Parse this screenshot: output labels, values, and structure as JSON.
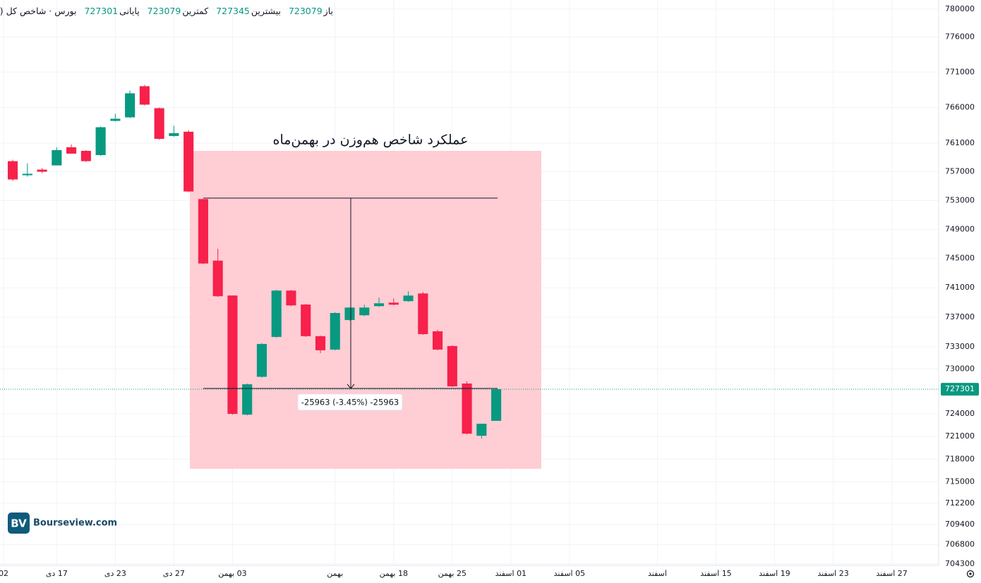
{
  "header": {
    "symbol": "بورس · شاخص کل (هم وزن)",
    "open_label": "باز",
    "high_label": "بیشترین",
    "low_label": "کمترین",
    "close_label": "پایانی"
  },
  "watermark": {
    "logo": "BV",
    "text": "Bourseview.com"
  },
  "chart_data": {
    "type": "candlestick",
    "log_scale": true,
    "grid": true,
    "up_color": "#089981",
    "down_color": "#f7214b",
    "ylim": [
      704100,
      781300
    ],
    "yticks": [
      780000,
      776000,
      771000,
      766000,
      761000,
      757000,
      753000,
      749000,
      745000,
      741000,
      737000,
      733000,
      730000,
      724000,
      721000,
      718000,
      715000,
      712200,
      709400,
      706800,
      704300
    ],
    "xlim": [
      -0.87,
      63.2
    ],
    "xticks": [
      {
        "value": -0.63,
        "label": "02"
      },
      {
        "value": 3,
        "label": "17 دی"
      },
      {
        "value": 7,
        "label": "23 دی"
      },
      {
        "value": 11,
        "label": "27 دی"
      },
      {
        "value": 15,
        "label": "03 بهمن"
      },
      {
        "value": 22,
        "label": "بهمن"
      },
      {
        "value": 26,
        "label": "18 بهمن"
      },
      {
        "value": 30,
        "label": "25 بهمن"
      },
      {
        "value": 34,
        "label": "01 اسفند"
      },
      {
        "value": 38,
        "label": "05 اسفند"
      },
      {
        "value": 44,
        "label": "اسفند"
      },
      {
        "value": 48,
        "label": "15 اسفند"
      },
      {
        "value": 52,
        "label": "19 اسفند"
      },
      {
        "value": 56,
        "label": "23 اسفند"
      },
      {
        "value": 60,
        "label": "27 اسفند"
      }
    ],
    "open": [
      758470,
      756510,
      757290,
      757880,
      760410,
      759910,
      759320,
      764110,
      764610,
      769000,
      765900,
      761990,
      762590,
      753200,
      744710,
      739950,
      723900,
      728960,
      734330,
      740620,
      738720,
      734430,
      732620,
      736620,
      737260,
      738500,
      738980,
      739180,
      740230,
      735090,
      733100,
      728060,
      721090,
      723079
    ],
    "high": [
      758670,
      758180,
      757490,
      760410,
      760800,
      760010,
      763320,
      765110,
      768400,
      769200,
      766000,
      763420,
      762790,
      753200,
      746350,
      739950,
      728060,
      733480,
      740720,
      740720,
      738820,
      734530,
      737670,
      738340,
      738700,
      739660,
      739560,
      740520,
      740420,
      735280,
      733200,
      728340,
      722690,
      727345
    ],
    "low": [
      755720,
      756310,
      756800,
      757880,
      759520,
      758370,
      759220,
      764010,
      764510,
      766300,
      761490,
      761890,
      754150,
      744220,
      739750,
      723900,
      723800,
      728860,
      734230,
      738500,
      734330,
      732150,
      732520,
      736520,
      737160,
      738400,
      738600,
      739080,
      734610,
      732520,
      727580,
      721270,
      720720,
      723079
    ],
    "close": [
      755920,
      756710,
      757000,
      760010,
      759520,
      758470,
      763220,
      764410,
      768000,
      766400,
      761590,
      762390,
      754250,
      744320,
      739850,
      724000,
      727960,
      733380,
      740620,
      738600,
      734430,
      732530,
      737570,
      738310,
      738310,
      738890,
      738700,
      739940,
      734710,
      732620,
      727680,
      721370,
      722690,
      727301
    ],
    "annotation": {
      "title": "عملکرد شاخص هم‌وزن در بهمن‌ماه",
      "measure": "-25963 (-3.45%) -25963"
    }
  }
}
